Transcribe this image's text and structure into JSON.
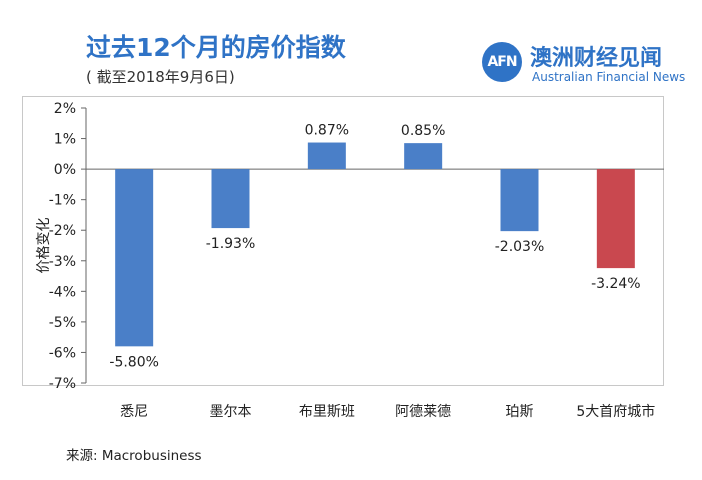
{
  "header": {
    "title": "过去12个月的房价指数",
    "subtitle": "( 截至2018年9月6日)"
  },
  "brand": {
    "logo_mark": "AFN",
    "name_cn": "澳洲财经见闻",
    "name_en": "Australian Financial News",
    "color": "#2f73c6"
  },
  "chart_data": {
    "type": "bar",
    "ylabel": "价格变化",
    "ylim": [
      -7,
      2
    ],
    "yticks": [
      "2%",
      "1%",
      "0%",
      "-1%",
      "-2%",
      "-3%",
      "-4%",
      "-5%",
      "-6%",
      "-7%"
    ],
    "grid": false,
    "categories": [
      "悉尼",
      "墨尔本",
      "布里斯班",
      "阿德莱德",
      "珀斯",
      "5大首府城市"
    ],
    "values": [
      -5.8,
      -1.93,
      0.87,
      0.85,
      -2.03,
      -3.24
    ],
    "data_labels": [
      "-5.80%",
      "-1.93%",
      "0.87%",
      "0.85%",
      "-2.03%",
      "-3.24%"
    ],
    "colors": [
      "#4a7fc8",
      "#4a7fc8",
      "#4a7fc8",
      "#4a7fc8",
      "#4a7fc8",
      "#c9484f"
    ]
  },
  "footer": {
    "source": "来源:  Macrobusiness"
  }
}
